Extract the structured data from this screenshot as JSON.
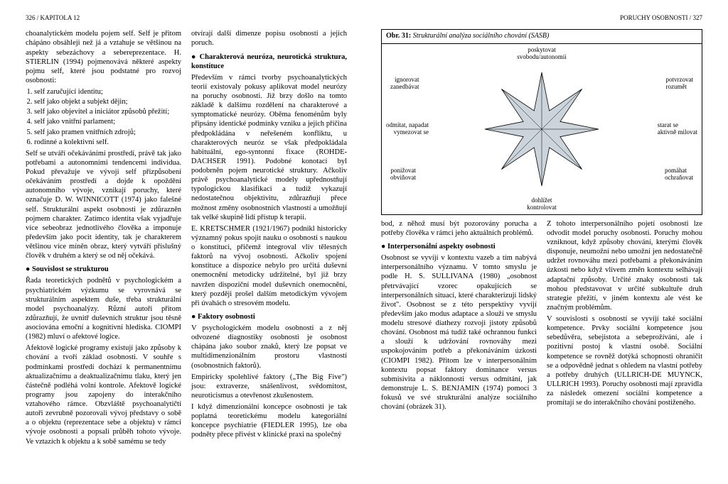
{
  "head_left": "326 / KAPITOLA 12",
  "head_right": "PORUCHY OSOBNOSTI / 327",
  "left": {
    "p1": "choanalytickém modelu pojem self. Self je přitom chápáno obsáhleji než já a vztahuje se většinou na aspekty sebezáchovy a sebereprezentace. H. STIERLIN (1994) pojmenovává některé aspekty pojmu self, které jsou podstatné pro rozvoj osobnosti:",
    "list_items": [
      "self zaručující identitu;",
      "self jako objekt a subjekt dějin;",
      "self jako objevitel a iniciátor způsobů přežití;",
      "self jako vnitřní parlament;",
      "self jako pramen vnitřních zdrojů;",
      "rodinné a kolektivní self."
    ],
    "p2": "Self se utváří očekáváními prostředí, právě tak jako potřebami a autonomními tendencemi individua. Pokud převažuje ve vývoji self přizpůsobení očekáváním prostředí a dojde k opoždění autonomního vývoje, vznikají poruchy, které označuje D. W. WINNICOTT (1974) jako falešné self. Strukturální aspekt osobnosti je zdůrazněn pojmem charakter. Zatímco identita však vyjadřuje více sebeobraz jednotlivého člověka a imponuje především jako pocit identity, tak je charakterem většinou více míněn obraz, který vytváří příslušný člověk v druhém a který se od něj očekává.",
    "h1": "● Souvislost se strukturou",
    "p3": "Řada teoretických podnětů v psychologickém a psychiatrickém výzkumu se vyrovnává se strukturálním aspektem duše, třeba strukturální model psychoanalýzy. Různí autoři přitom zdůrazňují, že uvnitř duševních struktur jsou těsně asociována emoční a kognitivní hlediska. CIOMPI (1982) mluví o afektové logice.",
    "p4": "Afektově logické programy existují jako způsoby k chování a tvoří základ osobnosti. V souhře s podmínkami prostředí dochází k permanentnímu aktualizačnímu a deaktualizačnímu tlaku, který jen částečně podléhá volní kontrole. Afektově logické programy jsou zapojeny do interakčního vztahového rámce. Obzvláště psychoanalytičtí autoři zevrubně pozorovali vývoj představy o sobě a o objektu (reprezentace sebe a objektu) v rámci vývoje osobnosti a popsali průběh tohoto vývoje. Ve vztazích k objektu a k sobě samému se tedy",
    "rc_p1": "otvírají další dimenze popisu osobnosti a jejich poruch.",
    "rc_h1": "● Charakterová neuróza, neurotická struktura, konstituce",
    "rc_p2": "Především v rámci tvorby psychoanalytických teorií existovaly pokusy aplikovat model neurózy na poruchy osobnosti. Již brzy došlo na tomto základě k dalšímu rozdělení na charakterové a symptomatické neurózy. Oběma fenoménům byly připsány identické podmínky vzniku a jejich příčina předpokládána v neřešeném konfliktu, u charakterových neuróz se však předpokládala habituální, ego-syntonní fixace (ROHDE-DACHSER 1991). Podobné konotací byl podobrněn pojem neurotické struktury. Ačkoliv právě psychoanalytické modely upřednostňují typologickou klasifikaci a tudíž vykazují nedostatečnou objektivitu, zdůrazňují přece možnost změny osobnostních vlastností a umožňují tak velké skupině lidí přístup k terapii.",
    "rc_p3": "E. KRETSCHMER (1921/1967) podnikl historicky významný pokus spojit nauku o osobnosti s naukou o konstituci, přičemž integroval vliv tělesných faktorů na vývoj osobnosti. Ačkoliv spojení konstituce a dispozice nebylo pro určitá duševní onemocnění metodicky udržitelné, byl již brzy navržen dispoziční model duševních onemocnění, který později prošel dalším metodickým vývojem při úvahách o stresovém modelu.",
    "rc_h2": "● Faktory osobnosti",
    "rc_p4": "V psychologickém modelu osobnosti a z něj odvozené diagnostiky osobnosti je osobnost chápána jako soubor znaků, který lze popsat ve multidimenzionálním prostoru vlastností (osobnostních faktorů).",
    "rc_p5": "Empiricky spolehlivé faktory („The Big Five\") jsou: extraverze, snášenlivost, svědomitost, neuroticismus a otevřenost zkušenostem.",
    "rc_p6": "I když dimenzionální koncepce osobnosti je tak poplatná teoretickému modelu kategoriální koncepce psychiatrie (FIEDLER 1995), lze oba podněty přece přivést v klinické praxi na společný"
  },
  "right": {
    "fig_title_strong": "Obr. 31:",
    "fig_title_rest": " Strukturální analýza sociálního chování (SASB)",
    "labels": {
      "top": "poskytovat\nsvobodu/autonomii",
      "tr": "potvrzovat\nrozumět",
      "r": "starat se\naktivně milovat",
      "br": "pomáhat\nochraňovat",
      "bottom": "dohlížet\nkontrolovat",
      "bl": "ponižovat\nobviňovat",
      "l": "odmítat, napadat\nvymezovat se",
      "tl": "ignorovat\nzanedbávat"
    },
    "p1": "bod, z něhož musí být pozorovány porucha a potřeby člověka v rámci jeho aktuálních problémů.",
    "h1": "● Interpersonální aspekty osobnosti",
    "p2": "Osobnost se vyvíjí v kontextu vazeb a tím nabývá interpersonálního významu. V tomto smyslu je podle H. S. SULLIVANA (1980) „osobnost přetrvávající vzorec opakujících se interpersonálních situací, které charakterizují lidský život\". Osobnost se z této perspektivy vyvíjí především jako modus adaptace a slouží ve smyslu modelu stresové diathezy rozvoji jistoty způsobů chování. Osobnost má tudíž také ochrannou funkci a slouží k udržování rovnováhy mezi uspokojováním potřeb a překonáváním úzkosti (CIOMPI 1982). Přitom lze v interpersonálním kontextu popsat faktory dominance versus submisivita a náklonnosti versus odmítání, jak demonstruje L. S. BENJAMIN (1974) pomocí 3 fokusů ve své strukturální analýze sociálního chování (obrázek 31).",
    "rc_p1": "Z tohoto interpersonálního pojetí osobnosti lze odvodit model poruchy osobnosti. Poruchy mohou vzniknout, když způsoby chování, kterými člověk disponuje, neumožní nebo umožní jen nedostatečně udržet rovnováhu mezi potřebami a překonáváním úzkosti nebo když vlivem změn kontextu selhávají adaptační způsoby. Určité znaky osobnosti tak mohou představovat v určité subkultuře druh strategie přežití, v jiném kontextu ale vést ke značným problémům.",
    "rc_p2": "V souvislosti s osobností se vyvíjí také sociální kompetence. Prvky sociální kompetence jsou sebedůvěra, sebejistota a sebeprožívání, ale i pozitivní postoj k vlastní osobě. Sociální kompetence se rovněž dotýká schopnosti ohraničit se a odpovědně jednat s ohledem na vlastní potřeby a potřeby druhých (ULLRICH-DE MUYNCK, ULLRICH 1993). Poruchy osobnosti mají zpravidla za následek omezení sociální kompetence a promítají se do interakčního chování postiženého."
  },
  "star": {
    "size": 170,
    "outer_r": 80,
    "inner_r": 28,
    "fill": "#cbd3db",
    "stroke": "#000",
    "points": 8
  }
}
